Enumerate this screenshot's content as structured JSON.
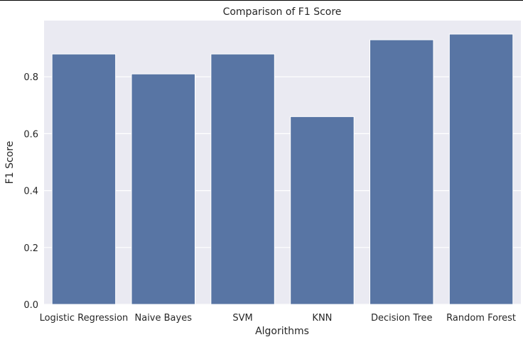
{
  "chart_data": {
    "type": "bar",
    "title": "Comparison of F1 Score",
    "xlabel": "Algorithms",
    "ylabel": "F1 Score",
    "categories": [
      "Logistic Regression",
      "Naive Bayes",
      "SVM",
      "KNN",
      "Decision Tree",
      "Random Forest"
    ],
    "values": [
      0.88,
      0.81,
      0.88,
      0.66,
      0.93,
      0.95
    ],
    "ylim": [
      0,
      0.9975
    ],
    "yticks": [
      "0.0",
      "0.2",
      "0.4",
      "0.6",
      "0.8"
    ],
    "grid": true,
    "colors": {
      "bar": "#5875a4",
      "plot_background": "#eaeaf2",
      "grid": "#ffffff",
      "text": "#262626"
    }
  }
}
